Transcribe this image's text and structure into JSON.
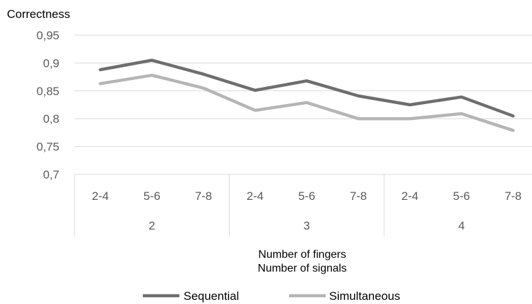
{
  "chart_data": {
    "type": "line",
    "ylabel": "Correctness",
    "xlabel_lines": [
      "Number of fingers",
      "Number of signals"
    ],
    "ylim": [
      0.7,
      0.95
    ],
    "yticks": [
      "0,7",
      "0,75",
      "0,8",
      "0,85",
      "0,9",
      "0,95"
    ],
    "ytick_values": [
      0.7,
      0.75,
      0.8,
      0.85,
      0.9,
      0.95
    ],
    "categories": [
      "2-4",
      "5-6",
      "7-8",
      "2-4",
      "5-6",
      "7-8",
      "2-4",
      "5-6",
      "7-8"
    ],
    "groups": [
      {
        "label": "2",
        "span": 3
      },
      {
        "label": "3",
        "span": 3
      },
      {
        "label": "4",
        "span": 3
      }
    ],
    "series": [
      {
        "name": "Sequential",
        "color": "#6e6e6e",
        "values": [
          0.888,
          0.905,
          0.88,
          0.851,
          0.868,
          0.841,
          0.825,
          0.839,
          0.805
        ]
      },
      {
        "name": "Simultaneous",
        "color": "#b5b5b5",
        "values": [
          0.863,
          0.878,
          0.855,
          0.815,
          0.829,
          0.8,
          0.8,
          0.809,
          0.779
        ]
      }
    ],
    "grid": true,
    "legend_position": "bottom"
  }
}
